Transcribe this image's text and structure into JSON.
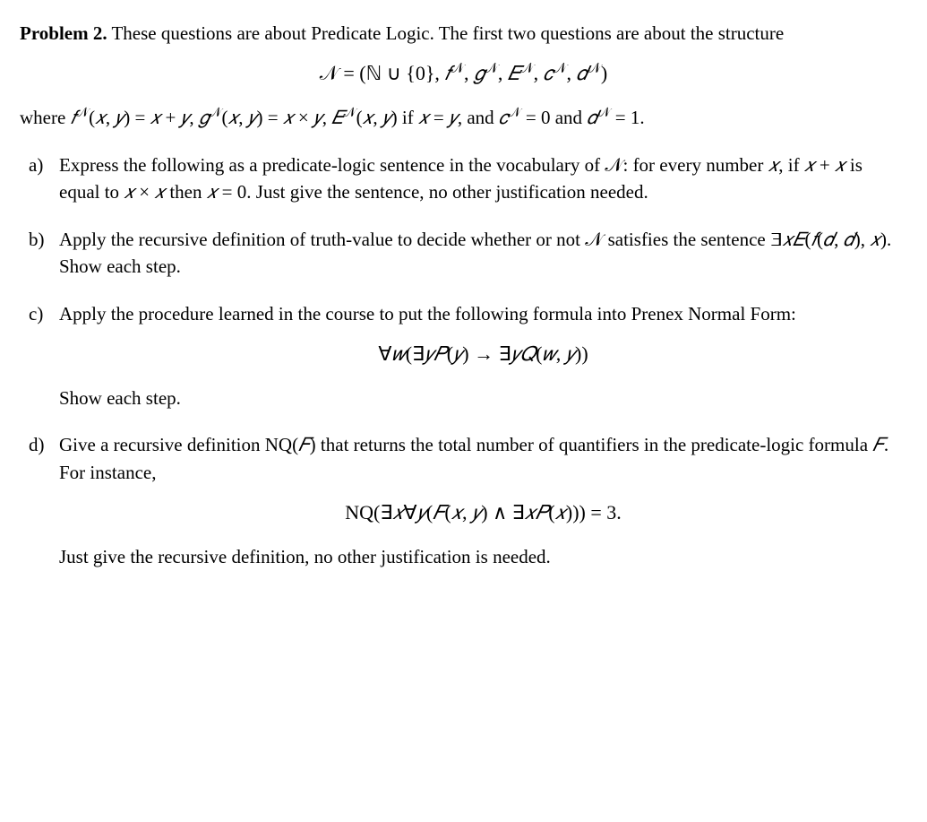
{
  "problem": {
    "label": "Problem",
    "number": "2.",
    "intro_text": "These questions are about Predicate Logic. The first two questions are about the structure",
    "structure_eq": "𝒩 = (ℕ ∪ {0}, 𝑓^𝒩, 𝑔^𝒩, 𝐸^𝒩, 𝑐^𝒩, 𝑑^𝒩)",
    "where_clause_prefix": "where ",
    "where_f": "𝑓^𝒩(𝑥, 𝑦) = 𝑥 + 𝑦",
    "where_g": "𝑔^𝒩(𝑥, 𝑦) = 𝑥 × 𝑦",
    "where_E": "𝐸^𝒩(𝑥, 𝑦) if 𝑥 = 𝑦",
    "where_c": "𝑐^𝒩 = 0",
    "where_and": ", and ",
    "where_d": "𝑑^𝒩 = 1.",
    "comma_sep": ", ",
    "and_sep_line1": " and "
  },
  "items": {
    "a": {
      "label": "a)",
      "text_part1": "Express the following as a predicate-logic sentence in the vocabulary of ",
      "text_part2": ": for every number ",
      "var_x": "𝑥",
      "text_part3": ", if ",
      "expr1": "𝑥 + 𝑥",
      "text_part4": " is equal to ",
      "expr2": "𝑥 × 𝑥",
      "text_part5": " then ",
      "expr3": "𝑥 = 0",
      "text_part6": ". Just give the sentence, no other justification needed."
    },
    "b": {
      "label": "b)",
      "text_part1": "Apply the recursive definition of truth-value to decide whether or not ",
      "text_part2": " satisfies the sentence ",
      "sentence": "∃𝑥𝐸(𝑓(𝑑, 𝑑), 𝑥)",
      "text_part3": ". Show each step."
    },
    "c": {
      "label": "c)",
      "text_part1": "Apply the procedure learned in the course to put the following formula into Prenex Normal Form:",
      "formula": "∀𝑤(∃𝑦𝑃(𝑦) → ∃𝑦𝑄(𝑤, 𝑦))",
      "show_text": "Show each step."
    },
    "d": {
      "label": "d)",
      "text_part1": "Give a recursive definition NQ(",
      "var_F": "𝐹",
      "text_part2": ") that returns the total number of quantifiers in the predicate-logic formula ",
      "text_part3": ". For instance,",
      "example": "NQ(∃𝑥∀𝑦(𝐹(𝑥, 𝑦) ∧ ∃𝑥𝑃(𝑥))) = 3.",
      "final_text": "Just give the recursive definition, no other justification is needed."
    }
  }
}
